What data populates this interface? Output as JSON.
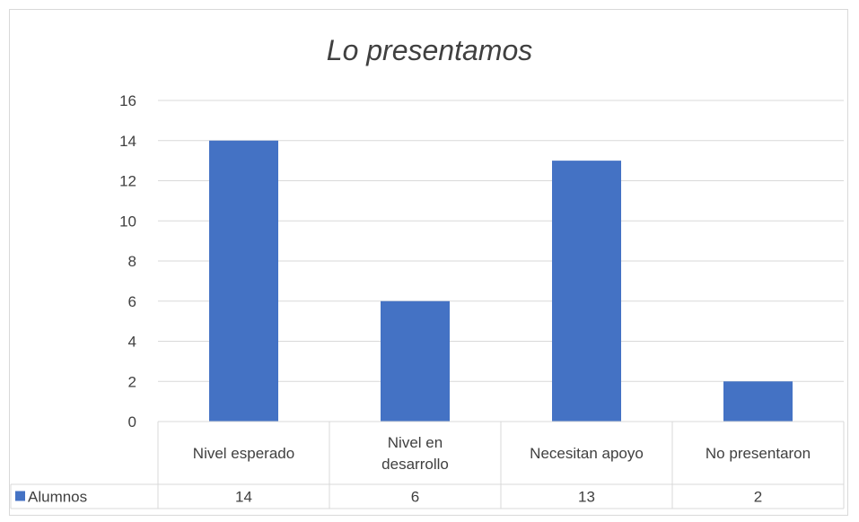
{
  "chart_data": {
    "type": "bar",
    "title": "Lo presentamos",
    "categories": [
      "Nivel esperado",
      "Nivel en desarrollo",
      "Necesitan apoyo",
      "No presentaron"
    ],
    "category_lines": [
      [
        "Nivel esperado"
      ],
      [
        "Nivel en",
        "desarrollo"
      ],
      [
        "Necesitan apoyo"
      ],
      [
        "No presentaron"
      ]
    ],
    "series": [
      {
        "name": "Alumnos",
        "values": [
          14,
          6,
          13,
          2
        ],
        "color": "#4472c4"
      }
    ],
    "ylim": [
      0,
      16
    ],
    "yticks": [
      0,
      2,
      4,
      6,
      8,
      10,
      12,
      14,
      16
    ],
    "grid": true,
    "legend": "data-table",
    "data_table": true
  }
}
